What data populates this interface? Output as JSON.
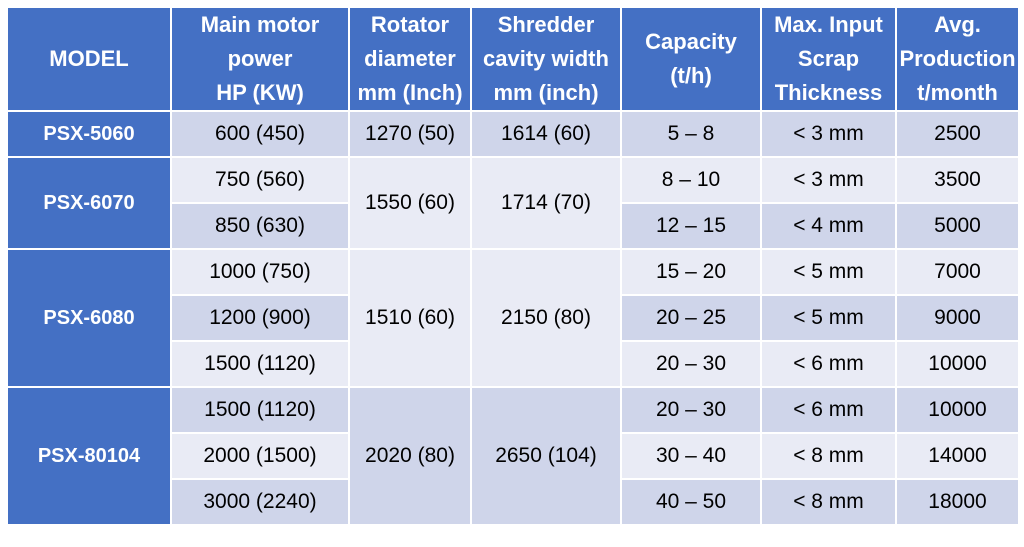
{
  "headers": [
    [
      "MODEL"
    ],
    [
      "Main motor",
      "power",
      "HP (KW)"
    ],
    [
      "Rotator",
      "diameter",
      "mm (Inch)"
    ],
    [
      "Shredder",
      "cavity width",
      "mm (inch)"
    ],
    [
      "Capacity",
      "(t/h)"
    ],
    [
      "Max. Input",
      "Scrap",
      "Thickness"
    ],
    [
      "Avg.",
      "Production",
      "t/month"
    ]
  ],
  "groups": [
    {
      "model": "PSX-5060",
      "rotator": "1270 (50)",
      "cavity": "1614 (60)",
      "rows": [
        {
          "power": "600 (450)",
          "capacity": "5 – 8",
          "thickness": "< 3 mm",
          "production": "2500"
        }
      ]
    },
    {
      "model": "PSX-6070",
      "rotator": "1550 (60)",
      "cavity": "1714 (70)",
      "rows": [
        {
          "power": "750 (560)",
          "capacity": "8 – 10",
          "thickness": "< 3 mm",
          "production": "3500"
        },
        {
          "power": "850 (630)",
          "capacity": "12 – 15",
          "thickness": "< 4 mm",
          "production": "5000"
        }
      ]
    },
    {
      "model": "PSX-6080",
      "rotator": "1510 (60)",
      "cavity": "2150 (80)",
      "rows": [
        {
          "power": "1000 (750)",
          "capacity": "15 – 20",
          "thickness": "< 5 mm",
          "production": "7000"
        },
        {
          "power": "1200 (900)",
          "capacity": "20 – 25",
          "thickness": "< 5 mm",
          "production": "9000"
        },
        {
          "power": "1500 (1120)",
          "capacity": "20 – 30",
          "thickness": "< 6 mm",
          "production": "10000"
        }
      ]
    },
    {
      "model": "PSX-80104",
      "rotator": "2020 (80)",
      "cavity": "2650 (104)",
      "rows": [
        {
          "power": "1500 (1120)",
          "capacity": "20 – 30",
          "thickness": "< 6 mm",
          "production": "10000"
        },
        {
          "power": "2000 (1500)",
          "capacity": "30 – 40",
          "thickness": "< 8 mm",
          "production": "14000"
        },
        {
          "power": "3000 (2240)",
          "capacity": "40 – 50",
          "thickness": "< 8 mm",
          "production": "18000"
        }
      ]
    }
  ],
  "colors": {
    "header_bg": "#4470c4",
    "row_dark": "#cfd5ea",
    "row_light": "#e9ebf5",
    "header_text": "#ffffff"
  }
}
